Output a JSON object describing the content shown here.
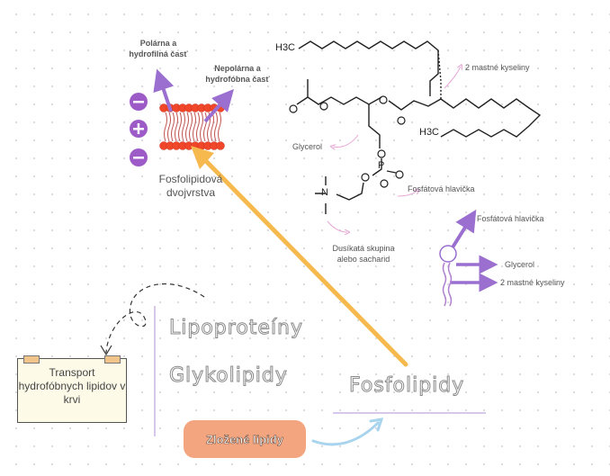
{
  "bilayer": {
    "polar_label": "Polárna a hydrofilná časť",
    "nonpolar_label": "Nepolárna a hydrofóbna časť",
    "title": "Fosfolipidová dvojvrstva"
  },
  "structure": {
    "ch3_top": "H3C",
    "ch3_bottom": "H3C",
    "fatty_acids_label": "2 mastné kyseliny",
    "glycerol_label": "Glycerol",
    "phosphate_label": "Fosfátová hlavička",
    "nitrogen_label": "Dusíkatá skupina alebo sacharid",
    "phosphorus": "P",
    "nitrogen": "N"
  },
  "simple_model": {
    "phosphate_label": "Fosfátová hlavička",
    "glycerol_label": "Glycerol",
    "fatty_acids_label": "2 mastné kyseliny"
  },
  "topics": {
    "lipoproteins": "Lipoproteíny",
    "glycolipids": "Glykolipidy",
    "phospholipids": "Fosfolipidy"
  },
  "note": {
    "text": "Transport hydrofóbnych lipidov v krvi"
  },
  "complex_lipids": {
    "label": "Zložené lipidy"
  },
  "colors": {
    "purple": "#9a6fd0",
    "orange": "#f5b94e",
    "pink": "#e7a8d6",
    "blue": "#a8d4ee",
    "bead": "#f0462a",
    "charge": "#9c5bc6"
  }
}
